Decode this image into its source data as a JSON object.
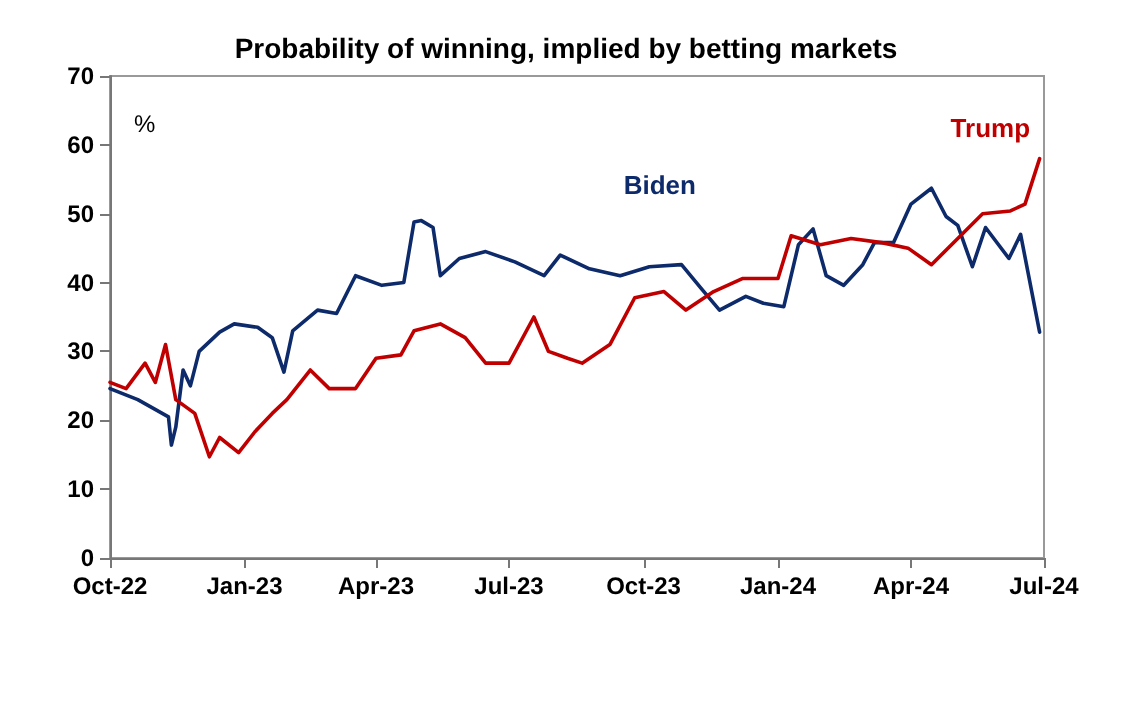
{
  "chart_data": {
    "type": "line",
    "title": "Probability of winning, implied by betting markets",
    "ylabel": "%",
    "xlim": [
      "2022-10-01",
      "2024-07-01"
    ],
    "xticks": [
      {
        "value": "2022-10-01",
        "label": "Oct-22"
      },
      {
        "value": "2023-01-01",
        "label": "Jan-23"
      },
      {
        "value": "2023-04-01",
        "label": "Apr-23"
      },
      {
        "value": "2023-07-01",
        "label": "Jul-23"
      },
      {
        "value": "2023-10-01",
        "label": "Oct-23"
      },
      {
        "value": "2024-01-01",
        "label": "Jan-24"
      },
      {
        "value": "2024-04-01",
        "label": "Apr-24"
      },
      {
        "value": "2024-07-01",
        "label": "Jul-24"
      }
    ],
    "ylim": [
      0,
      70
    ],
    "yticks": [
      0,
      10,
      20,
      30,
      40,
      50,
      60,
      70
    ],
    "grid": false,
    "legend": false,
    "marker": "none",
    "line_style": "solid",
    "series": [
      {
        "name": "Biden",
        "color": "#0d2a6b",
        "x": [
          "2022-10-01",
          "2022-10-20",
          "2022-11-10",
          "2022-11-12",
          "2022-11-15",
          "2022-11-20",
          "2022-11-25",
          "2022-12-01",
          "2022-12-15",
          "2022-12-25",
          "2023-01-10",
          "2023-01-20",
          "2023-01-28",
          "2023-02-03",
          "2023-02-20",
          "2023-03-05",
          "2023-03-18",
          "2023-04-05",
          "2023-04-20",
          "2023-04-27",
          "2023-05-02",
          "2023-05-10",
          "2023-05-15",
          "2023-05-28",
          "2023-06-15",
          "2023-07-05",
          "2023-07-25",
          "2023-08-05",
          "2023-08-25",
          "2023-09-15",
          "2023-10-05",
          "2023-10-27",
          "2023-11-10",
          "2023-11-22",
          "2023-12-10",
          "2023-12-22",
          "2024-01-05",
          "2024-01-15",
          "2024-01-25",
          "2024-02-03",
          "2024-02-15",
          "2024-02-28",
          "2024-03-07",
          "2024-03-20",
          "2024-04-01",
          "2024-04-15",
          "2024-04-25",
          "2024-05-03",
          "2024-05-13",
          "2024-05-22",
          "2024-06-07",
          "2024-06-15",
          "2024-06-28"
        ],
        "values": [
          24.6,
          23,
          20.5,
          16.4,
          19,
          27.3,
          25,
          30,
          32.8,
          34,
          33.5,
          32,
          27,
          33,
          36,
          35.5,
          41,
          39.6,
          40,
          48.8,
          49,
          48,
          41,
          43.5,
          44.5,
          43,
          41,
          44,
          42,
          41,
          42.3,
          42.6,
          39,
          36,
          38,
          37,
          36.5,
          45.5,
          47.8,
          41,
          39.6,
          42.6,
          45.8,
          45.8,
          51.4,
          53.7,
          49.6,
          48.3,
          42.3,
          48,
          43.5,
          47,
          32.8
        ]
      },
      {
        "name": "Trump",
        "color": "#c00000",
        "x": [
          "2022-10-01",
          "2022-10-12",
          "2022-10-25",
          "2022-11-01",
          "2022-11-08",
          "2022-11-15",
          "2022-11-28",
          "2022-12-08",
          "2022-12-15",
          "2022-12-28",
          "2023-01-08",
          "2023-01-20",
          "2023-01-30",
          "2023-02-15",
          "2023-02-28",
          "2023-03-18",
          "2023-04-01",
          "2023-04-18",
          "2023-04-27",
          "2023-05-15",
          "2023-06-01",
          "2023-06-15",
          "2023-07-01",
          "2023-07-18",
          "2023-07-28",
          "2023-08-10",
          "2023-08-20",
          "2023-09-08",
          "2023-09-25",
          "2023-10-15",
          "2023-10-30",
          "2023-11-18",
          "2023-12-08",
          "2024-01-01",
          "2024-01-10",
          "2024-01-30",
          "2024-02-20",
          "2024-03-12",
          "2024-03-30",
          "2024-04-15",
          "2024-05-03",
          "2024-05-20",
          "2024-06-08",
          "2024-06-18",
          "2024-06-28"
        ],
        "values": [
          25.5,
          24.6,
          28.3,
          25.5,
          31,
          23,
          21,
          14.7,
          17.5,
          15.3,
          18.3,
          21,
          23,
          27.3,
          24.6,
          24.6,
          29,
          29.5,
          33,
          34,
          32,
          28.3,
          28.3,
          35,
          30,
          29,
          28.3,
          31,
          37.8,
          38.7,
          36,
          38.7,
          40.6,
          40.6,
          46.8,
          45.5,
          46.4,
          45.8,
          45,
          42.6,
          46.4,
          50,
          50.4,
          51.4,
          58
        ]
      }
    ]
  }
}
